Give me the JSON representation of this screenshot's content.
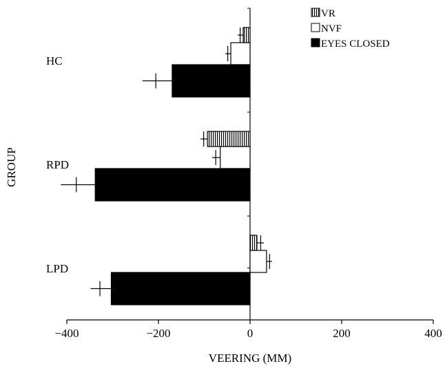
{
  "chart_data": {
    "type": "bar",
    "orientation": "horizontal",
    "title": "",
    "xlabel": "VEERING (MM)",
    "ylabel": "GROUP",
    "xlim": [
      -400,
      400
    ],
    "xticks": [
      -400,
      -200,
      0,
      200,
      400
    ],
    "xtick_labels": [
      "−400",
      "−200",
      "0",
      "200",
      "400"
    ],
    "categories": [
      "HC",
      "RPD",
      "LPD"
    ],
    "series": [
      {
        "name": "VR",
        "pattern": "vertical-hatch",
        "color": "#000000",
        "values": [
          -15,
          -93,
          15
        ],
        "errors": [
          12,
          15,
          15
        ]
      },
      {
        "name": "NVF",
        "pattern": "open",
        "color": "#ffffff",
        "values": [
          -42,
          -65,
          36
        ],
        "errors": [
          12,
          18,
          12
        ]
      },
      {
        "name": "EYES CLOSED",
        "pattern": "solid",
        "color": "#000000",
        "values": [
          -170,
          -338,
          -303
        ],
        "errors": [
          65,
          75,
          45
        ]
      }
    ],
    "grid": false,
    "legend_position": "top-right"
  }
}
